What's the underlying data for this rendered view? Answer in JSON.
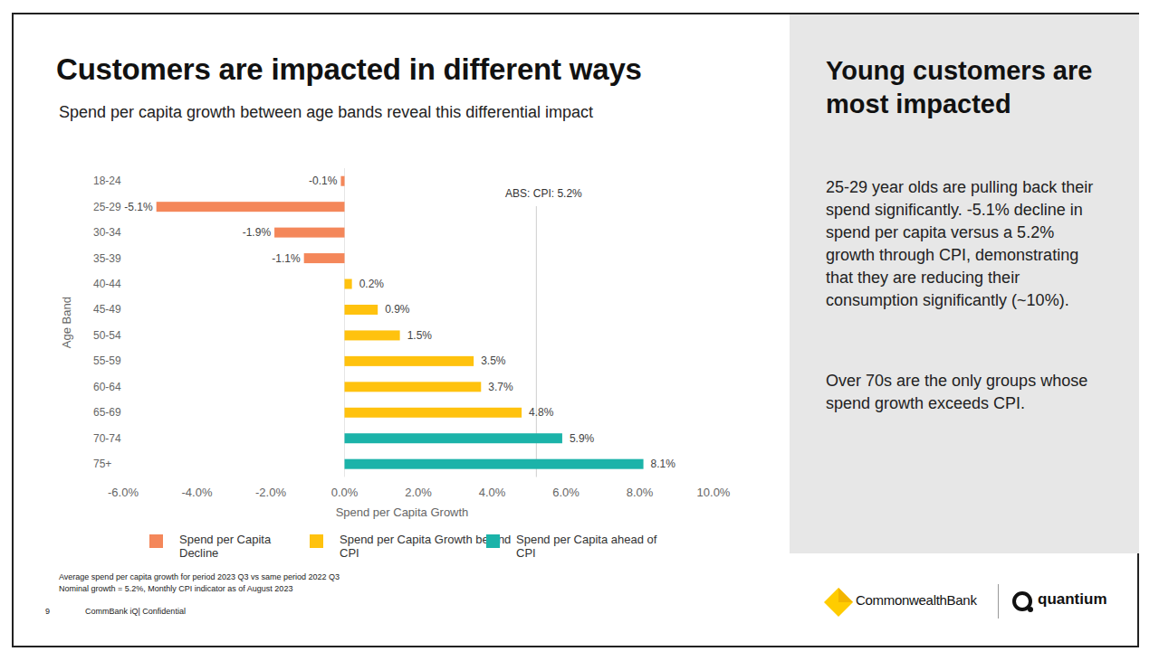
{
  "page": {
    "title": "Customers are impacted in different ways",
    "subtitle": "Spend per capita growth between age bands reveal this differential impact",
    "footnotes": [
      "Average spend per capita growth for period 2023 Q3 vs same period 2022 Q3",
      "Nominal growth = 5.2%, Monthly CPI indicator as of August 2023"
    ],
    "page_number": "9",
    "footer": "CommBank iQ| Confidential",
    "panel": {
      "heading": "Young customers are most impacted",
      "paragraphs": [
        "25-29 year olds are pulling back their spend significantly. -5.1% decline in spend per capita versus a 5.2% growth through CPI, demonstrating that they are reducing their consumption significantly (~10%).",
        "Over 70s are the only groups whose spend growth exceeds CPI."
      ]
    },
    "logos": [
      "CommonwealthBank",
      "quantium"
    ]
  },
  "chart_data": {
    "type": "bar",
    "orientation": "horizontal",
    "x_label": "Spend per Capita Growth",
    "y_label": "Age Band",
    "categories": [
      "18-24",
      "25-29",
      "30-34",
      "35-39",
      "40-44",
      "45-49",
      "50-54",
      "55-59",
      "60-64",
      "65-69",
      "70-74",
      "75+"
    ],
    "series": [
      {
        "name": "Spend per Capita Decline",
        "color": "#f4875a",
        "values": [
          -0.1,
          -5.1,
          -1.9,
          -1.1,
          null,
          null,
          null,
          null,
          null,
          null,
          null,
          null
        ],
        "value_labels": [
          "-0.1%",
          "-5.1%",
          "-1.9%",
          "-1.1%",
          null,
          null,
          null,
          null,
          null,
          null,
          null,
          null
        ]
      },
      {
        "name": "Spend per Capita Growth behind CPI",
        "color": "#ffc20e",
        "values": [
          null,
          null,
          null,
          null,
          0.2,
          0.9,
          1.5,
          3.5,
          3.7,
          4.8,
          null,
          null
        ],
        "value_labels": [
          null,
          null,
          null,
          null,
          "0.2%",
          "0.9%",
          "1.5%",
          "3.5%",
          "3.7%",
          "4.8%",
          null,
          null
        ]
      },
      {
        "name": "Spend per Capita ahead of CPI",
        "color": "#1bb3a9",
        "values": [
          null,
          null,
          null,
          null,
          null,
          null,
          null,
          null,
          null,
          null,
          5.9,
          8.1
        ],
        "value_labels": [
          null,
          null,
          null,
          null,
          null,
          null,
          null,
          null,
          null,
          null,
          "5.9%",
          "8.1%"
        ]
      }
    ],
    "xlim": [
      -6,
      10
    ],
    "xticks": [
      {
        "value": -6,
        "label": "-6.0%"
      },
      {
        "value": -4,
        "label": "-4.0%"
      },
      {
        "value": -2,
        "label": "-2.0%"
      },
      {
        "value": 0,
        "label": "0.0%"
      },
      {
        "value": 2,
        "label": "2.0%"
      },
      {
        "value": 4,
        "label": "4.0%"
      },
      {
        "value": 6,
        "label": "6.0%"
      },
      {
        "value": 8,
        "label": "8.0%"
      },
      {
        "value": 10,
        "label": "10.0%"
      }
    ],
    "grid": false,
    "data_labels": true,
    "legend": "bottom",
    "annotations": [
      {
        "text": "ABS: CPI: 5.2%",
        "x": 5.2
      }
    ]
  }
}
